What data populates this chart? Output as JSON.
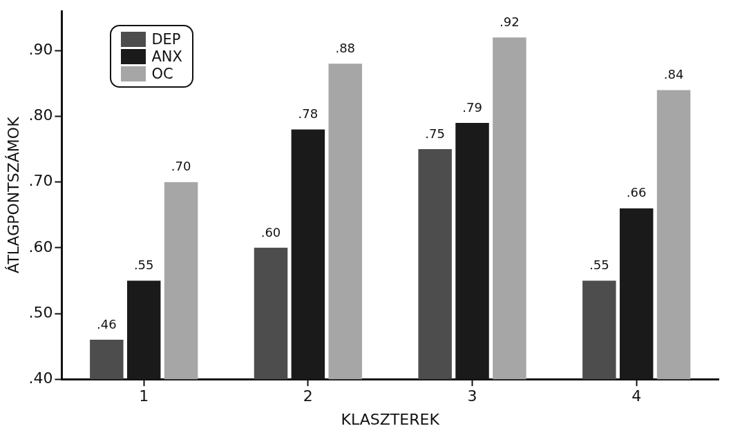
{
  "chart_data": {
    "type": "bar",
    "xlabel": "KLASZTEREK",
    "ylabel": "ÁTLAGPONTSZÁMOK",
    "categories": [
      "1",
      "2",
      "3",
      "4"
    ],
    "series": [
      {
        "name": "DEP",
        "color": "#4d4d4d",
        "values": [
          0.46,
          0.6,
          0.75,
          0.55
        ],
        "value_labels": [
          ".46",
          ".60",
          ".75",
          ".55"
        ]
      },
      {
        "name": "ANX",
        "color": "#1a1a1a",
        "values": [
          0.55,
          0.78,
          0.79,
          0.66
        ],
        "value_labels": [
          ".55",
          ".78",
          ".79",
          ".66"
        ]
      },
      {
        "name": "OC",
        "color": "#a6a6a6",
        "values": [
          0.7,
          0.88,
          0.92,
          0.84
        ],
        "value_labels": [
          ".70",
          ".88",
          ".92",
          ".84"
        ]
      }
    ],
    "ylim": [
      0.4,
      0.96
    ],
    "yticks": [
      {
        "value": 0.4,
        "label": ".40"
      },
      {
        "value": 0.5,
        "label": ".50"
      },
      {
        "value": 0.6,
        "label": ".60"
      },
      {
        "value": 0.7,
        "label": ".70"
      },
      {
        "value": 0.8,
        "label": ".80"
      },
      {
        "value": 0.9,
        "label": ".90"
      }
    ],
    "grid": false,
    "legend": "top left"
  }
}
